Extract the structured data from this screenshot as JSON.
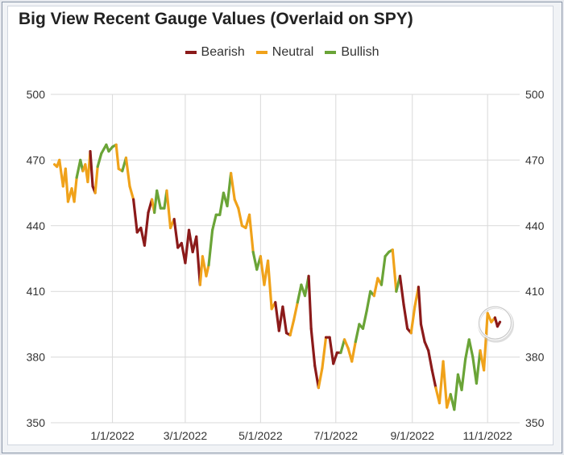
{
  "colors": {
    "Bearish": "#8b1a1a",
    "Neutral": "#f0a21a",
    "Bullish": "#6aa437",
    "grid": "#d9d9d9"
  },
  "chart_data": {
    "type": "line",
    "title": "Big View Recent Gauge Values (Overlaid on SPY)",
    "xlabel": "",
    "ylabel": "",
    "ylim": [
      350,
      500
    ],
    "yticks": [
      "500",
      "470",
      "440",
      "410",
      "380",
      "350"
    ],
    "xticks": [
      "1/1/2022",
      "3/1/2022",
      "5/1/2022",
      "7/1/2022",
      "9/1/2022",
      "11/1/2022"
    ],
    "xtick_dates": [
      "2022-01-01",
      "2022-03-01",
      "2022-05-01",
      "2022-07-01",
      "2022-09-01",
      "2022-11-01"
    ],
    "xlim": [
      "2021-11-12",
      "2022-11-27"
    ],
    "grid": true,
    "legend": {
      "position": "top-center",
      "entries": [
        "Bearish",
        "Neutral",
        "Bullish"
      ]
    },
    "points": [
      {
        "date": "2021-11-15",
        "value": 468,
        "sentiment": "Neutral"
      },
      {
        "date": "2021-11-17",
        "value": 467,
        "sentiment": "Neutral"
      },
      {
        "date": "2021-11-19",
        "value": 470,
        "sentiment": "Neutral"
      },
      {
        "date": "2021-11-22",
        "value": 458,
        "sentiment": "Neutral"
      },
      {
        "date": "2021-11-24",
        "value": 466,
        "sentiment": "Neutral"
      },
      {
        "date": "2021-11-26",
        "value": 451,
        "sentiment": "Neutral"
      },
      {
        "date": "2021-11-29",
        "value": 457,
        "sentiment": "Neutral"
      },
      {
        "date": "2021-12-01",
        "value": 451,
        "sentiment": "Neutral"
      },
      {
        "date": "2021-12-03",
        "value": 462,
        "sentiment": "Neutral"
      },
      {
        "date": "2021-12-06",
        "value": 470,
        "sentiment": "Bullish"
      },
      {
        "date": "2021-12-08",
        "value": 465,
        "sentiment": "Bullish"
      },
      {
        "date": "2021-12-10",
        "value": 468,
        "sentiment": "Neutral"
      },
      {
        "date": "2021-12-12",
        "value": 460,
        "sentiment": "Neutral"
      },
      {
        "date": "2021-12-14",
        "value": 474,
        "sentiment": "Neutral"
      },
      {
        "date": "2021-12-16",
        "value": 458,
        "sentiment": "Bearish"
      },
      {
        "date": "2021-12-18",
        "value": 455,
        "sentiment": "Bearish"
      },
      {
        "date": "2021-12-20",
        "value": 467,
        "sentiment": "Neutral"
      },
      {
        "date": "2021-12-23",
        "value": 473,
        "sentiment": "Bullish"
      },
      {
        "date": "2021-12-27",
        "value": 477,
        "sentiment": "Bullish"
      },
      {
        "date": "2021-12-29",
        "value": 474,
        "sentiment": "Bullish"
      },
      {
        "date": "2022-01-01",
        "value": 476,
        "sentiment": "Bullish"
      },
      {
        "date": "2022-01-04",
        "value": 477,
        "sentiment": "Bullish"
      },
      {
        "date": "2022-01-06",
        "value": 466,
        "sentiment": "Neutral"
      },
      {
        "date": "2022-01-09",
        "value": 465,
        "sentiment": "Neutral"
      },
      {
        "date": "2022-01-12",
        "value": 471,
        "sentiment": "Bullish"
      },
      {
        "date": "2022-01-15",
        "value": 458,
        "sentiment": "Neutral"
      },
      {
        "date": "2022-01-18",
        "value": 452,
        "sentiment": "Neutral"
      },
      {
        "date": "2022-01-21",
        "value": 437,
        "sentiment": "Bearish"
      },
      {
        "date": "2022-01-24",
        "value": 439,
        "sentiment": "Bearish"
      },
      {
        "date": "2022-01-27",
        "value": 431,
        "sentiment": "Bearish"
      },
      {
        "date": "2022-01-30",
        "value": 446,
        "sentiment": "Bearish"
      },
      {
        "date": "2022-02-02",
        "value": 452,
        "sentiment": "Bearish"
      },
      {
        "date": "2022-02-04",
        "value": 446,
        "sentiment": "Neutral"
      },
      {
        "date": "2022-02-06",
        "value": 456,
        "sentiment": "Bullish"
      },
      {
        "date": "2022-02-09",
        "value": 448,
        "sentiment": "Bullish"
      },
      {
        "date": "2022-02-12",
        "value": 448,
        "sentiment": "Bullish"
      },
      {
        "date": "2022-02-14",
        "value": 456,
        "sentiment": "Bullish"
      },
      {
        "date": "2022-02-17",
        "value": 439,
        "sentiment": "Neutral"
      },
      {
        "date": "2022-02-20",
        "value": 443,
        "sentiment": "Neutral"
      },
      {
        "date": "2022-02-23",
        "value": 430,
        "sentiment": "Bearish"
      },
      {
        "date": "2022-02-26",
        "value": 432,
        "sentiment": "Bearish"
      },
      {
        "date": "2022-03-01",
        "value": 423,
        "sentiment": "Bearish"
      },
      {
        "date": "2022-03-04",
        "value": 438,
        "sentiment": "Bearish"
      },
      {
        "date": "2022-03-07",
        "value": 428,
        "sentiment": "Bearish"
      },
      {
        "date": "2022-03-10",
        "value": 435,
        "sentiment": "Bearish"
      },
      {
        "date": "2022-03-13",
        "value": 413,
        "sentiment": "Bearish"
      },
      {
        "date": "2022-03-15",
        "value": 426,
        "sentiment": "Neutral"
      },
      {
        "date": "2022-03-18",
        "value": 417,
        "sentiment": "Neutral"
      },
      {
        "date": "2022-03-20",
        "value": 422,
        "sentiment": "Neutral"
      },
      {
        "date": "2022-03-23",
        "value": 438,
        "sentiment": "Bullish"
      },
      {
        "date": "2022-03-26",
        "value": 445,
        "sentiment": "Bullish"
      },
      {
        "date": "2022-03-29",
        "value": 445,
        "sentiment": "Bullish"
      },
      {
        "date": "2022-04-01",
        "value": 455,
        "sentiment": "Bullish"
      },
      {
        "date": "2022-04-04",
        "value": 449,
        "sentiment": "Bullish"
      },
      {
        "date": "2022-04-07",
        "value": 464,
        "sentiment": "Bullish"
      },
      {
        "date": "2022-04-10",
        "value": 452,
        "sentiment": "Neutral"
      },
      {
        "date": "2022-04-13",
        "value": 448,
        "sentiment": "Neutral"
      },
      {
        "date": "2022-04-16",
        "value": 440,
        "sentiment": "Neutral"
      },
      {
        "date": "2022-04-19",
        "value": 439,
        "sentiment": "Neutral"
      },
      {
        "date": "2022-04-22",
        "value": 445,
        "sentiment": "Neutral"
      },
      {
        "date": "2022-04-25",
        "value": 428,
        "sentiment": "Neutral"
      },
      {
        "date": "2022-04-28",
        "value": 420,
        "sentiment": "Bullish"
      },
      {
        "date": "2022-05-01",
        "value": 426,
        "sentiment": "Bullish"
      },
      {
        "date": "2022-05-04",
        "value": 413,
        "sentiment": "Neutral"
      },
      {
        "date": "2022-05-07",
        "value": 424,
        "sentiment": "Neutral"
      },
      {
        "date": "2022-05-10",
        "value": 402,
        "sentiment": "Neutral"
      },
      {
        "date": "2022-05-13",
        "value": 405,
        "sentiment": "Neutral"
      },
      {
        "date": "2022-05-16",
        "value": 392,
        "sentiment": "Bearish"
      },
      {
        "date": "2022-05-19",
        "value": 403,
        "sentiment": "Bearish"
      },
      {
        "date": "2022-05-22",
        "value": 391,
        "sentiment": "Bearish"
      },
      {
        "date": "2022-05-25",
        "value": 390,
        "sentiment": "Bearish"
      },
      {
        "date": "2022-05-28",
        "value": 397,
        "sentiment": "Neutral"
      },
      {
        "date": "2022-05-31",
        "value": 405,
        "sentiment": "Neutral"
      },
      {
        "date": "2022-06-03",
        "value": 413,
        "sentiment": "Bullish"
      },
      {
        "date": "2022-06-06",
        "value": 408,
        "sentiment": "Bullish"
      },
      {
        "date": "2022-06-09",
        "value": 417,
        "sentiment": "Bullish"
      },
      {
        "date": "2022-06-11",
        "value": 393,
        "sentiment": "Bearish"
      },
      {
        "date": "2022-06-14",
        "value": 376,
        "sentiment": "Bearish"
      },
      {
        "date": "2022-06-17",
        "value": 366,
        "sentiment": "Bearish"
      },
      {
        "date": "2022-06-20",
        "value": 375,
        "sentiment": "Neutral"
      },
      {
        "date": "2022-06-23",
        "value": 389,
        "sentiment": "Neutral"
      },
      {
        "date": "2022-06-26",
        "value": 389,
        "sentiment": "Bearish"
      },
      {
        "date": "2022-06-29",
        "value": 377,
        "sentiment": "Bearish"
      },
      {
        "date": "2022-07-02",
        "value": 382,
        "sentiment": "Bearish"
      },
      {
        "date": "2022-07-05",
        "value": 382,
        "sentiment": "Bearish"
      },
      {
        "date": "2022-07-08",
        "value": 388,
        "sentiment": "Bullish"
      },
      {
        "date": "2022-07-11",
        "value": 384,
        "sentiment": "Neutral"
      },
      {
        "date": "2022-07-14",
        "value": 378,
        "sentiment": "Neutral"
      },
      {
        "date": "2022-07-17",
        "value": 387,
        "sentiment": "Neutral"
      },
      {
        "date": "2022-07-20",
        "value": 395,
        "sentiment": "Bullish"
      },
      {
        "date": "2022-07-23",
        "value": 393,
        "sentiment": "Bullish"
      },
      {
        "date": "2022-07-26",
        "value": 401,
        "sentiment": "Bullish"
      },
      {
        "date": "2022-07-29",
        "value": 410,
        "sentiment": "Bullish"
      },
      {
        "date": "2022-08-01",
        "value": 408,
        "sentiment": "Bullish"
      },
      {
        "date": "2022-08-04",
        "value": 416,
        "sentiment": "Neutral"
      },
      {
        "date": "2022-08-07",
        "value": 413,
        "sentiment": "Neutral"
      },
      {
        "date": "2022-08-10",
        "value": 426,
        "sentiment": "Bullish"
      },
      {
        "date": "2022-08-13",
        "value": 428,
        "sentiment": "Bullish"
      },
      {
        "date": "2022-08-16",
        "value": 429,
        "sentiment": "Bullish"
      },
      {
        "date": "2022-08-19",
        "value": 410,
        "sentiment": "Neutral"
      },
      {
        "date": "2022-08-22",
        "value": 417,
        "sentiment": "Bullish"
      },
      {
        "date": "2022-08-25",
        "value": 404,
        "sentiment": "Bearish"
      },
      {
        "date": "2022-08-28",
        "value": 393,
        "sentiment": "Bearish"
      },
      {
        "date": "2022-08-31",
        "value": 391,
        "sentiment": "Bearish"
      },
      {
        "date": "2022-09-03",
        "value": 403,
        "sentiment": "Neutral"
      },
      {
        "date": "2022-09-06",
        "value": 412,
        "sentiment": "Neutral"
      },
      {
        "date": "2022-09-08",
        "value": 395,
        "sentiment": "Bearish"
      },
      {
        "date": "2022-09-11",
        "value": 387,
        "sentiment": "Bearish"
      },
      {
        "date": "2022-09-14",
        "value": 383,
        "sentiment": "Bearish"
      },
      {
        "date": "2022-09-17",
        "value": 374,
        "sentiment": "Bearish"
      },
      {
        "date": "2022-09-20",
        "value": 366,
        "sentiment": "Bearish"
      },
      {
        "date": "2022-09-23",
        "value": 359,
        "sentiment": "Neutral"
      },
      {
        "date": "2022-09-26",
        "value": 378,
        "sentiment": "Neutral"
      },
      {
        "date": "2022-09-29",
        "value": 357,
        "sentiment": "Neutral"
      },
      {
        "date": "2022-10-02",
        "value": 363,
        "sentiment": "Neutral"
      },
      {
        "date": "2022-10-05",
        "value": 356,
        "sentiment": "Bullish"
      },
      {
        "date": "2022-10-08",
        "value": 372,
        "sentiment": "Bullish"
      },
      {
        "date": "2022-10-11",
        "value": 365,
        "sentiment": "Bullish"
      },
      {
        "date": "2022-10-14",
        "value": 379,
        "sentiment": "Bullish"
      },
      {
        "date": "2022-10-17",
        "value": 388,
        "sentiment": "Bullish"
      },
      {
        "date": "2022-10-20",
        "value": 380,
        "sentiment": "Bullish"
      },
      {
        "date": "2022-10-23",
        "value": 368,
        "sentiment": "Bullish"
      },
      {
        "date": "2022-10-26",
        "value": 383,
        "sentiment": "Bullish"
      },
      {
        "date": "2022-10-29",
        "value": 374,
        "sentiment": "Neutral"
      },
      {
        "date": "2022-11-01",
        "value": 400,
        "sentiment": "Neutral"
      },
      {
        "date": "2022-11-04",
        "value": 396,
        "sentiment": "Neutral"
      },
      {
        "date": "2022-11-07",
        "value": 398,
        "sentiment": "Neutral"
      },
      {
        "date": "2022-11-09",
        "value": 394,
        "sentiment": "Bearish"
      },
      {
        "date": "2022-11-11",
        "value": 396,
        "sentiment": "Bearish"
      }
    ]
  }
}
